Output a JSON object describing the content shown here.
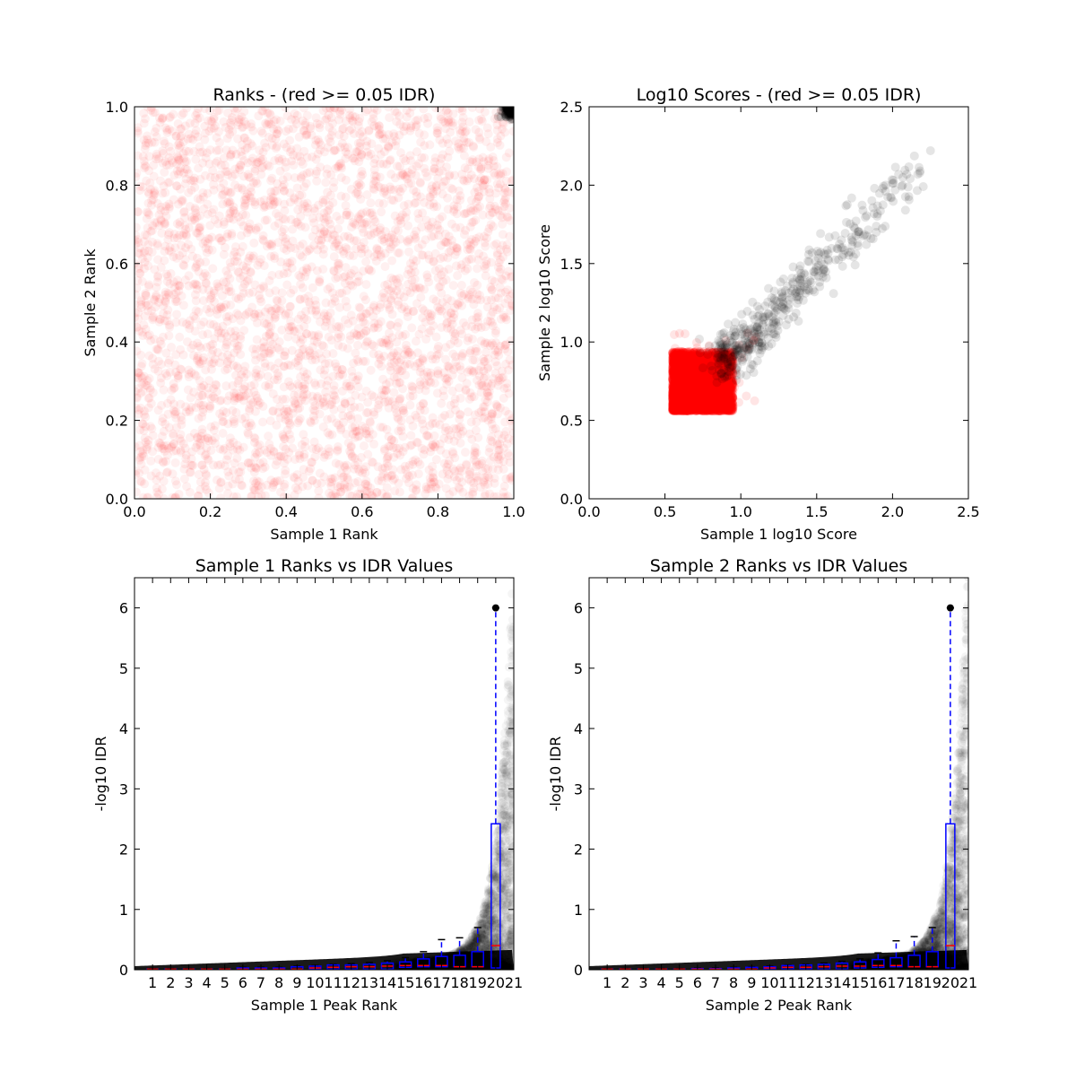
{
  "colors": {
    "significant": "#000000",
    "not_significant": "#ff0000",
    "box": "#0000ff",
    "median": "#ff0000"
  },
  "chart_data": [
    {
      "type": "scatter",
      "title": "Ranks - (red >= 0.05 IDR)",
      "xlabel": "Sample 1 Rank",
      "ylabel": "Sample 2 Rank",
      "xlim": [
        0,
        1
      ],
      "ylim": [
        0,
        1
      ],
      "xticks": [
        "0.0",
        "0.2",
        "0.4",
        "0.6",
        "0.8",
        "1.0"
      ],
      "yticks": [
        "0.0",
        "0.2",
        "0.4",
        "0.6",
        "0.8",
        "1.0"
      ],
      "grid": false,
      "series": [
        {
          "color": "#ff0000",
          "x_range": [
            0,
            1
          ],
          "y_range": [
            0,
            1
          ]
        },
        {
          "color": "#000000",
          "x_range": [
            0.95,
            1
          ],
          "y_range": [
            0.95,
            1
          ]
        }
      ]
    },
    {
      "type": "scatter",
      "title": "Log10 Scores - (red >= 0.05 IDR)",
      "xlabel": "Sample 1 log10 Score",
      "ylabel": "Sample 2 log10 Score",
      "xlim": [
        0,
        2.5
      ],
      "ylim": [
        0,
        2.5
      ],
      "xticks": [
        "0.0",
        "0.5",
        "1.0",
        "1.5",
        "2.0",
        "2.5"
      ],
      "yticks": [
        "0.0",
        "0.5",
        "1.0",
        "1.5",
        "2.0",
        "2.5"
      ],
      "grid": false,
      "series": [
        {
          "color": "#ff0000",
          "x_range": [
            0.55,
            1.1
          ],
          "y_range": [
            0.55,
            1.37
          ]
        },
        {
          "color": "#000000",
          "x_range": [
            0.85,
            2.25
          ],
          "y_range": [
            0.8,
            2.22
          ]
        }
      ]
    },
    {
      "type": "box",
      "title": "Sample 1 Ranks vs IDR Values",
      "xlabel": "Sample 1 Peak Rank",
      "ylabel": "-log10 IDR",
      "xlim": [
        0,
        21
      ],
      "ylim": [
        0,
        6.5
      ],
      "xticks": [
        "1",
        "2",
        "3",
        "4",
        "5",
        "6",
        "7",
        "8",
        "9",
        "10",
        "11",
        "12",
        "13",
        "14",
        "15",
        "16",
        "17",
        "18",
        "19",
        "20",
        "21"
      ],
      "yticks": [
        "0",
        "1",
        "2",
        "3",
        "4",
        "5",
        "6"
      ],
      "grid": false,
      "boxes": [
        {
          "pos": 1,
          "q1": 0,
          "median": 0.01,
          "q3": 0.01,
          "whisker": 0.02
        },
        {
          "pos": 2,
          "q1": 0,
          "median": 0.01,
          "q3": 0.01,
          "whisker": 0.02
        },
        {
          "pos": 3,
          "q1": 0,
          "median": 0.01,
          "q3": 0.01,
          "whisker": 0.02
        },
        {
          "pos": 4,
          "q1": 0,
          "median": 0.01,
          "q3": 0.01,
          "whisker": 0.02
        },
        {
          "pos": 5,
          "q1": 0,
          "median": 0.01,
          "q3": 0.01,
          "whisker": 0.02
        },
        {
          "pos": 6,
          "q1": 0,
          "median": 0.01,
          "q3": 0.03,
          "whisker": 0.04
        },
        {
          "pos": 7,
          "q1": 0,
          "median": 0.01,
          "q3": 0.03,
          "whisker": 0.04
        },
        {
          "pos": 8,
          "q1": 0,
          "median": 0.01,
          "q3": 0.03,
          "whisker": 0.04
        },
        {
          "pos": 9,
          "q1": 0,
          "median": 0.01,
          "q3": 0.05,
          "whisker": 0.06
        },
        {
          "pos": 10,
          "q1": 0.01,
          "median": 0.03,
          "q3": 0.06,
          "whisker": 0.07
        },
        {
          "pos": 11,
          "q1": 0.01,
          "median": 0.04,
          "q3": 0.08,
          "whisker": 0.09
        },
        {
          "pos": 12,
          "q1": 0.01,
          "median": 0.05,
          "q3": 0.08,
          "whisker": 0.1
        },
        {
          "pos": 13,
          "q1": 0.01,
          "median": 0.05,
          "q3": 0.09,
          "whisker": 0.12
        },
        {
          "pos": 14,
          "q1": 0.01,
          "median": 0.06,
          "q3": 0.11,
          "whisker": 0.15
        },
        {
          "pos": 15,
          "q1": 0.04,
          "median": 0.07,
          "q3": 0.13,
          "whisker": 0.2
        },
        {
          "pos": 16,
          "q1": 0.05,
          "median": 0.07,
          "q3": 0.18,
          "whisker": 0.3
        },
        {
          "pos": 17,
          "q1": 0.05,
          "median": 0.07,
          "q3": 0.22,
          "whisker": 0.5
        },
        {
          "pos": 18,
          "q1": 0.05,
          "median": 0.05,
          "q3": 0.24,
          "whisker": 0.53
        },
        {
          "pos": 19,
          "q1": 0.05,
          "median": 0.05,
          "q3": 0.3,
          "whisker": 0.7
        },
        {
          "pos": 20,
          "q1": 0.03,
          "median": 0.4,
          "q3": 2.42,
          "whisker": 6.0
        }
      ],
      "fliers": [
        {
          "x": 20,
          "y": 6.0
        }
      ]
    },
    {
      "type": "box",
      "title": "Sample 2 Ranks vs IDR Values",
      "xlabel": "Sample 2 Peak Rank",
      "ylabel": "-log10 IDR",
      "xlim": [
        0,
        21
      ],
      "ylim": [
        0,
        6.5
      ],
      "xticks": [
        "1",
        "2",
        "3",
        "4",
        "5",
        "6",
        "7",
        "8",
        "9",
        "10",
        "11",
        "12",
        "13",
        "14",
        "15",
        "16",
        "17",
        "18",
        "19",
        "20",
        "21"
      ],
      "yticks": [
        "0",
        "1",
        "2",
        "3",
        "4",
        "5",
        "6"
      ],
      "grid": false,
      "boxes": [
        {
          "pos": 1,
          "q1": 0,
          "median": 0.01,
          "q3": 0.01,
          "whisker": 0.02
        },
        {
          "pos": 2,
          "q1": 0,
          "median": 0.01,
          "q3": 0.01,
          "whisker": 0.02
        },
        {
          "pos": 3,
          "q1": 0,
          "median": 0.01,
          "q3": 0.01,
          "whisker": 0.02
        },
        {
          "pos": 4,
          "q1": 0,
          "median": 0.01,
          "q3": 0.01,
          "whisker": 0.02
        },
        {
          "pos": 5,
          "q1": 0,
          "median": 0.01,
          "q3": 0.01,
          "whisker": 0.02
        },
        {
          "pos": 6,
          "q1": 0,
          "median": 0.01,
          "q3": 0.02,
          "whisker": 0.03
        },
        {
          "pos": 7,
          "q1": 0,
          "median": 0.01,
          "q3": 0.02,
          "whisker": 0.03
        },
        {
          "pos": 8,
          "q1": 0,
          "median": 0.01,
          "q3": 0.03,
          "whisker": 0.04
        },
        {
          "pos": 9,
          "q1": 0,
          "median": 0.01,
          "q3": 0.04,
          "whisker": 0.05
        },
        {
          "pos": 10,
          "q1": 0.01,
          "median": 0.03,
          "q3": 0.05,
          "whisker": 0.06
        },
        {
          "pos": 11,
          "q1": 0.01,
          "median": 0.04,
          "q3": 0.07,
          "whisker": 0.08
        },
        {
          "pos": 12,
          "q1": 0.01,
          "median": 0.04,
          "q3": 0.08,
          "whisker": 0.09
        },
        {
          "pos": 13,
          "q1": 0.01,
          "median": 0.05,
          "q3": 0.09,
          "whisker": 0.11
        },
        {
          "pos": 14,
          "q1": 0.01,
          "median": 0.06,
          "q3": 0.11,
          "whisker": 0.14
        },
        {
          "pos": 15,
          "q1": 0.03,
          "median": 0.06,
          "q3": 0.13,
          "whisker": 0.18
        },
        {
          "pos": 16,
          "q1": 0.04,
          "median": 0.07,
          "q3": 0.17,
          "whisker": 0.28
        },
        {
          "pos": 17,
          "q1": 0.05,
          "median": 0.07,
          "q3": 0.2,
          "whisker": 0.48
        },
        {
          "pos": 18,
          "q1": 0.05,
          "median": 0.05,
          "q3": 0.24,
          "whisker": 0.55
        },
        {
          "pos": 19,
          "q1": 0.05,
          "median": 0.05,
          "q3": 0.3,
          "whisker": 0.7
        },
        {
          "pos": 20,
          "q1": 0.03,
          "median": 0.4,
          "q3": 2.42,
          "whisker": 6.0
        }
      ],
      "fliers": [
        {
          "x": 20,
          "y": 6.0
        }
      ]
    }
  ]
}
